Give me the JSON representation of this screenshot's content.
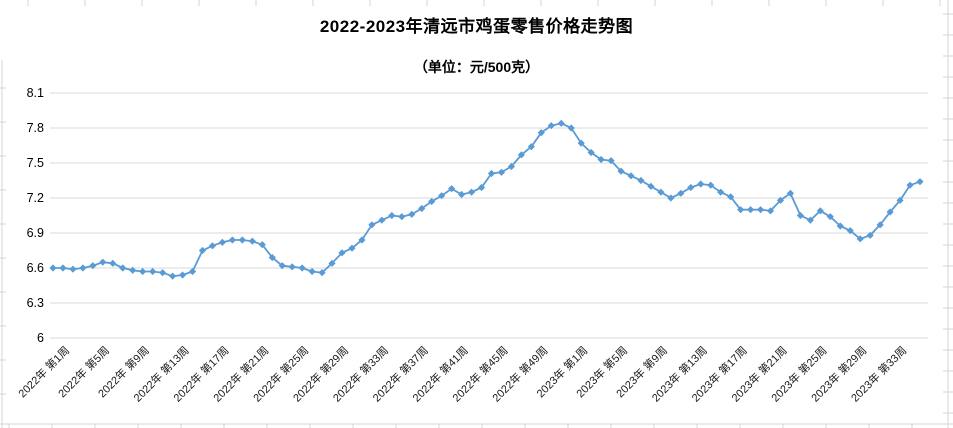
{
  "title": "2022-2023年清远市鸡蛋零售价格走势图",
  "subtitle": "（单位：元/500克）",
  "chart_data": {
    "type": "line",
    "title": "2022-2023年清远市鸡蛋零售价格走势图",
    "subtitle": "（单位：元/500克）",
    "unit": "元/500克",
    "ylim": [
      6,
      8.1
    ],
    "ytick_labels": [
      "6",
      "6.3",
      "6.6",
      "6.9",
      "7.2",
      "7.5",
      "7.8",
      "8.1"
    ],
    "ytick_values": [
      6,
      6.3,
      6.6,
      6.9,
      7.2,
      7.5,
      7.8,
      8.1
    ],
    "grid": "horizontal-only",
    "legend": "none",
    "series_color": "#5B9BD5",
    "gridline_color": "#d9d9d9",
    "marker": "diamond",
    "x_tick_labels": [
      "2022年 第1周",
      "2022年 第5周",
      "2022年 第9周",
      "2022年 第13周",
      "2022年 第17周",
      "2022年 第21周",
      "2022年 第25周",
      "2022年 第29周",
      "2022年 第33周",
      "2022年 第37周",
      "2022年 第41周",
      "2022年 第45周",
      "2022年 第49周",
      "2023年 第1周",
      "2023年 第5周",
      "2023年 第9周",
      "2023年 第13周",
      "2023年 第17周",
      "2023年 第21周",
      "2023年 第25周",
      "2023年 第29周",
      "2023年 第33周"
    ],
    "x_tick_indices": [
      0,
      4,
      8,
      12,
      16,
      20,
      24,
      28,
      32,
      36,
      40,
      44,
      48,
      52,
      56,
      60,
      64,
      68,
      72,
      76,
      80,
      84
    ],
    "x_description": "weekly egg retail price, 2022 week1 - 2023 week36",
    "series": [
      {
        "name": "鸡蛋零售价格",
        "values": [
          6.6,
          6.6,
          6.59,
          6.6,
          6.62,
          6.65,
          6.64,
          6.6,
          6.58,
          6.57,
          6.57,
          6.56,
          6.53,
          6.54,
          6.57,
          6.75,
          6.79,
          6.82,
          6.84,
          6.84,
          6.83,
          6.8,
          6.69,
          6.62,
          6.61,
          6.6,
          6.57,
          6.56,
          6.64,
          6.73,
          6.77,
          6.84,
          6.97,
          7.01,
          7.05,
          7.04,
          7.06,
          7.11,
          7.17,
          7.22,
          7.28,
          7.23,
          7.25,
          7.29,
          7.41,
          7.42,
          7.47,
          7.57,
          7.64,
          7.76,
          7.82,
          7.84,
          7.8,
          7.67,
          7.59,
          7.53,
          7.52,
          7.43,
          7.39,
          7.35,
          7.3,
          7.25,
          7.2,
          7.24,
          7.29,
          7.32,
          7.31,
          7.25,
          7.21,
          7.1,
          7.1,
          7.1,
          7.09,
          7.18,
          7.24,
          7.05,
          7.01,
          7.09,
          7.04,
          6.96,
          6.92,
          6.85,
          6.88,
          6.97,
          7.08,
          7.18,
          7.31,
          7.34
        ]
      }
    ]
  }
}
